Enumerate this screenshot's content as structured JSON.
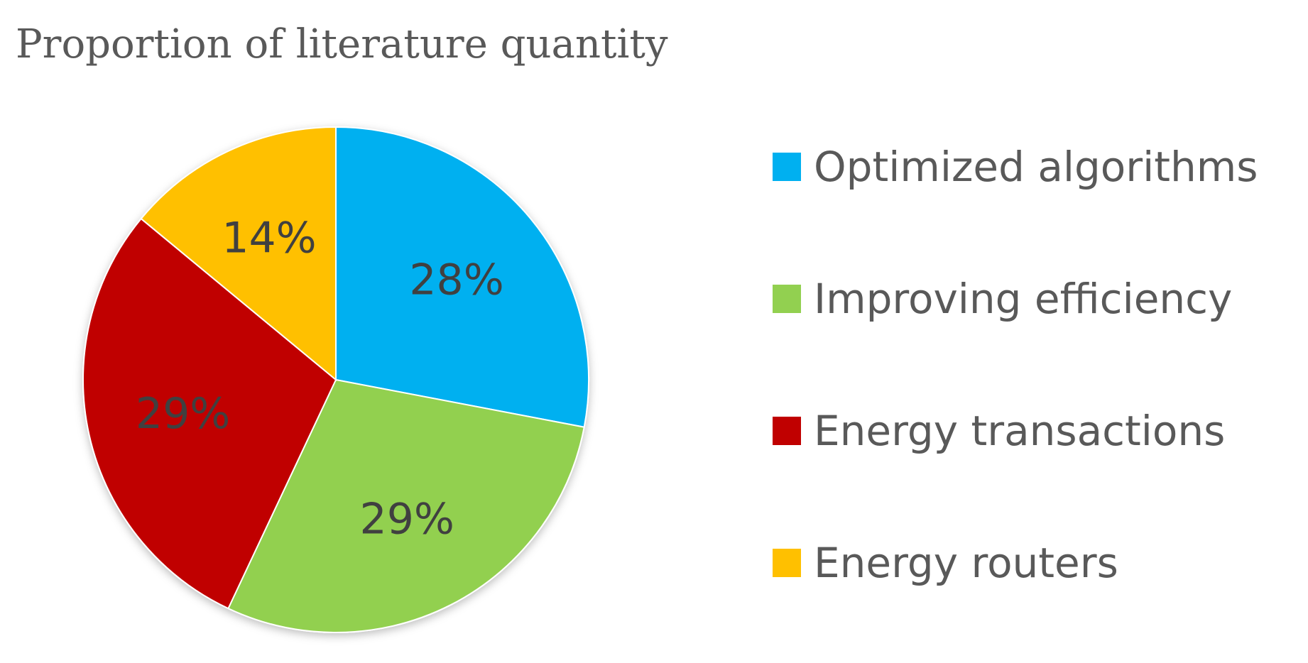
{
  "chart_data": {
    "type": "pie",
    "title": "Proportion of literature quantity",
    "categories": [
      "Optimized algorithms",
      "Improving efficiency",
      "Energy transactions",
      "Energy routers"
    ],
    "values": [
      28,
      29,
      29,
      14
    ],
    "value_labels": [
      "28%",
      "29%",
      "29%",
      "14%"
    ],
    "colors": [
      "#00B0F0",
      "#92D050",
      "#C00000",
      "#FFC000"
    ],
    "legend_placement": "right",
    "start_angle": "12 o'clock",
    "direction": "clockwise"
  }
}
